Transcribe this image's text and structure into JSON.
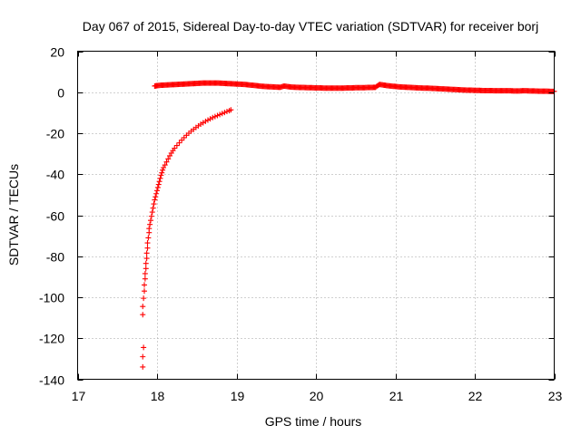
{
  "chart_data": {
    "type": "scatter",
    "title": "Day 067 of 2015, Sidereal Day-to-day VTEC variation (SDTVAR) for receiver borj",
    "xlabel": "GPS time / hours",
    "ylabel": "SDTVAR / TECUs",
    "xlim": [
      17,
      23
    ],
    "ylim": [
      -140,
      20
    ],
    "xticks": [
      17,
      18,
      19,
      20,
      21,
      22,
      23
    ],
    "yticks": [
      -140,
      -120,
      -100,
      -80,
      -60,
      -40,
      -20,
      0,
      20
    ],
    "grid": true,
    "marker": "+",
    "color": "#ff0000",
    "series": [
      {
        "points": [
          [
            17.82,
            -134
          ],
          [
            17.82,
            -129
          ],
          [
            17.83,
            -124.5
          ],
          [
            17.82,
            -108.5
          ],
          [
            17.82,
            -104.5
          ],
          [
            17.83,
            -100.5
          ],
          [
            17.84,
            -97
          ],
          [
            17.84,
            -94
          ],
          [
            17.85,
            -91
          ],
          [
            17.85,
            -88.5
          ],
          [
            17.86,
            -86
          ],
          [
            17.86,
            -83.5
          ],
          [
            17.87,
            -81
          ],
          [
            17.87,
            -78.5
          ],
          [
            17.88,
            -76
          ],
          [
            17.88,
            -73.5
          ],
          [
            17.89,
            -71
          ],
          [
            17.9,
            -68.5
          ],
          [
            17.9,
            -66.5
          ],
          [
            17.91,
            -64.5
          ],
          [
            17.92,
            -62.5
          ],
          [
            17.93,
            -60.5
          ],
          [
            17.94,
            -58.5
          ],
          [
            17.95,
            -56.5
          ],
          [
            17.96,
            -54.5
          ],
          [
            17.97,
            -52.5
          ],
          [
            17.98,
            -51
          ],
          [
            17.99,
            -49.5
          ],
          [
            18.0,
            -48
          ],
          [
            18.01,
            -46.5
          ],
          [
            18.02,
            -45
          ],
          [
            18.03,
            -43.5
          ],
          [
            18.04,
            -42
          ],
          [
            18.05,
            -40.5
          ],
          [
            18.06,
            -39.3
          ],
          [
            18.07,
            -38
          ],
          [
            18.08,
            -36.8
          ],
          [
            18.1,
            -35.5
          ],
          [
            18.12,
            -34
          ],
          [
            18.14,
            -32.5
          ],
          [
            18.16,
            -31
          ],
          [
            18.18,
            -29.7
          ],
          [
            18.2,
            -28.5
          ],
          [
            18.22,
            -27.3
          ],
          [
            18.25,
            -26
          ],
          [
            18.28,
            -24.7
          ],
          [
            18.31,
            -23.4
          ],
          [
            18.34,
            -22.2
          ],
          [
            18.37,
            -21
          ],
          [
            18.4,
            -20
          ],
          [
            18.43,
            -19
          ],
          [
            18.46,
            -18.1
          ],
          [
            18.49,
            -17.2
          ],
          [
            18.52,
            -16.4
          ],
          [
            18.55,
            -15.6
          ],
          [
            18.58,
            -14.9
          ],
          [
            18.61,
            -14.2
          ],
          [
            18.64,
            -13.6
          ],
          [
            18.67,
            -13
          ],
          [
            18.7,
            -12.4
          ],
          [
            18.73,
            -11.9
          ],
          [
            18.76,
            -11.4
          ],
          [
            18.79,
            -10.9
          ],
          [
            18.82,
            -10.4
          ],
          [
            18.85,
            -9.9
          ],
          [
            18.88,
            -9.4
          ],
          [
            18.91,
            -9
          ],
          [
            18.93,
            -8.6
          ]
        ]
      },
      {
        "points": [
          [
            17.97,
            3
          ],
          [
            18.0,
            3.2
          ],
          [
            18.05,
            3.4
          ],
          [
            18.1,
            3.5
          ],
          [
            18.15,
            3.6
          ],
          [
            18.2,
            3.7
          ],
          [
            18.25,
            3.8
          ],
          [
            18.3,
            3.9
          ],
          [
            18.35,
            4.0
          ],
          [
            18.4,
            4.1
          ],
          [
            18.45,
            4.2
          ],
          [
            18.5,
            4.3
          ],
          [
            18.55,
            4.4
          ],
          [
            18.6,
            4.5
          ],
          [
            18.65,
            4.5
          ],
          [
            18.7,
            4.5
          ],
          [
            18.75,
            4.5
          ],
          [
            18.8,
            4.4
          ],
          [
            18.85,
            4.3
          ],
          [
            18.9,
            4.2
          ],
          [
            18.95,
            4.1
          ],
          [
            19.0,
            4.0
          ],
          [
            19.05,
            3.9
          ],
          [
            19.1,
            3.8
          ],
          [
            19.15,
            3.6
          ],
          [
            19.2,
            3.4
          ],
          [
            19.25,
            3.2
          ],
          [
            19.3,
            3.0
          ],
          [
            19.35,
            2.8
          ],
          [
            19.4,
            2.7
          ],
          [
            19.45,
            2.6
          ],
          [
            19.5,
            2.5
          ],
          [
            19.55,
            2.4
          ],
          [
            19.6,
            3.0
          ],
          [
            19.65,
            2.7
          ],
          [
            19.7,
            2.5
          ],
          [
            19.75,
            2.4
          ],
          [
            19.8,
            2.3
          ],
          [
            19.85,
            2.3
          ],
          [
            19.9,
            2.2
          ],
          [
            19.95,
            2.2
          ],
          [
            20.0,
            2.1
          ],
          [
            20.05,
            2.1
          ],
          [
            20.1,
            2.0
          ],
          [
            20.15,
            2.0
          ],
          [
            20.2,
            2.0
          ],
          [
            20.25,
            2.0
          ],
          [
            20.3,
            2.0
          ],
          [
            20.35,
            2.0
          ],
          [
            20.4,
            2.1
          ],
          [
            20.45,
            2.1
          ],
          [
            20.5,
            2.2
          ],
          [
            20.55,
            2.2
          ],
          [
            20.6,
            2.2
          ],
          [
            20.65,
            2.3
          ],
          [
            20.7,
            2.3
          ],
          [
            20.75,
            2.4
          ],
          [
            20.8,
            3.8
          ],
          [
            20.85,
            3.5
          ],
          [
            20.9,
            3.2
          ],
          [
            20.95,
            3.0
          ],
          [
            21.0,
            2.8
          ],
          [
            21.05,
            2.6
          ],
          [
            21.1,
            2.5
          ],
          [
            21.15,
            2.4
          ],
          [
            21.2,
            2.3
          ],
          [
            21.25,
            2.2
          ],
          [
            21.3,
            2.1
          ],
          [
            21.35,
            2.0
          ],
          [
            21.4,
            2.0
          ],
          [
            21.45,
            1.9
          ],
          [
            21.5,
            1.8
          ],
          [
            21.55,
            1.7
          ],
          [
            21.6,
            1.6
          ],
          [
            21.65,
            1.5
          ],
          [
            21.7,
            1.4
          ],
          [
            21.75,
            1.3
          ],
          [
            21.8,
            1.2
          ],
          [
            21.85,
            1.1
          ],
          [
            21.9,
            1.0
          ],
          [
            21.95,
            1.0
          ],
          [
            22.0,
            0.9
          ],
          [
            22.05,
            0.9
          ],
          [
            22.1,
            0.8
          ],
          [
            22.15,
            0.8
          ],
          [
            22.2,
            0.8
          ],
          [
            22.25,
            0.7
          ],
          [
            22.3,
            0.7
          ],
          [
            22.35,
            0.7
          ],
          [
            22.4,
            0.7
          ],
          [
            22.45,
            0.7
          ],
          [
            22.5,
            0.6
          ],
          [
            22.55,
            0.6
          ],
          [
            22.6,
            0.7
          ],
          [
            22.65,
            0.7
          ],
          [
            22.7,
            0.6
          ],
          [
            22.75,
            0.6
          ],
          [
            22.8,
            0.5
          ],
          [
            22.85,
            0.5
          ],
          [
            22.9,
            0.5
          ],
          [
            22.95,
            0.4
          ],
          [
            23.0,
            0.4
          ]
        ]
      }
    ]
  }
}
